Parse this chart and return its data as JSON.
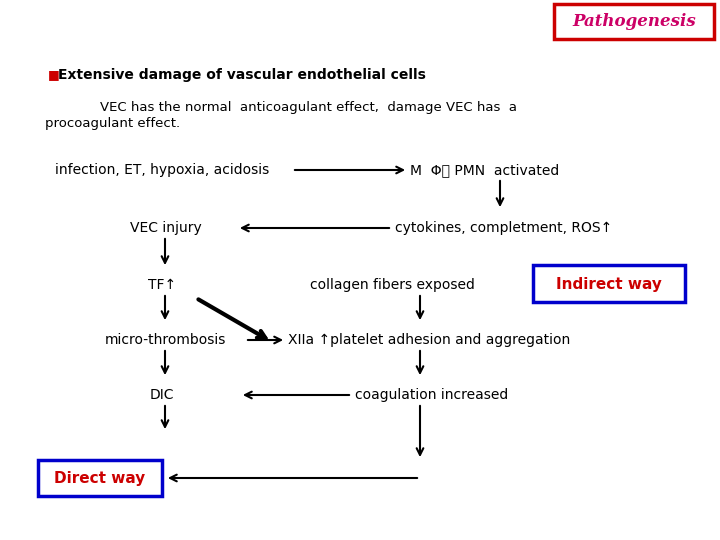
{
  "bg_color": "#ffffff",
  "title": "Pathogenesis",
  "title_color": "#cc0066",
  "title_border": "#cc0000",
  "bullet_color": "#cc0000",
  "bullet_text": "Extensive damage of vascular endothelial cells",
  "node_texts": {
    "infection": "infection, ET, hypoxia, acidosis",
    "mphi": "M  Φ、 PMN  activated",
    "vec_injury": "VEC injury",
    "cytokines": "cytokines, completment, ROS↑",
    "tf": "TF↑",
    "collagen": "collagen fibers exposed",
    "indirect": "Indirect way",
    "micro": "micro-thrombosis",
    "xiia": "XIIa ↑platelet adhesion and aggregation",
    "dic": "DIC",
    "coag": "coagulation increased",
    "direct": "Direct way"
  },
  "text_color": "#000000",
  "red_text": "#cc0000",
  "box_border_blue": "#0000cc",
  "box_border_red": "#cc0000"
}
